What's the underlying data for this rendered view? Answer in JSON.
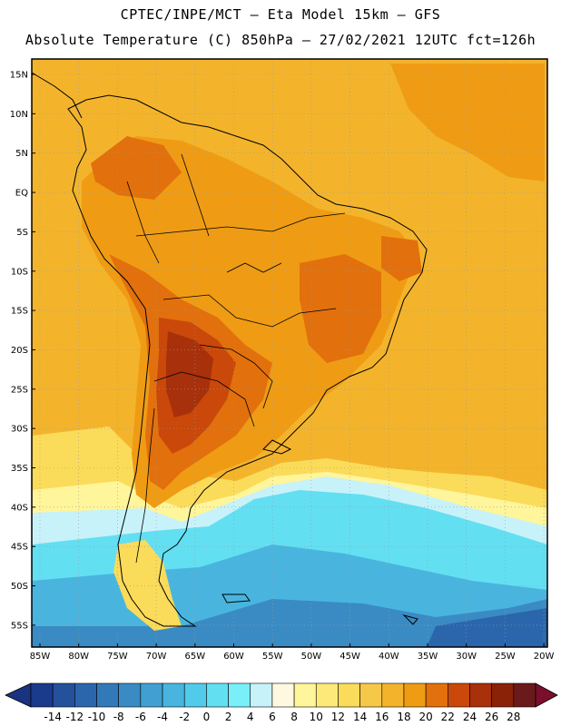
{
  "header": {
    "line1": "CPTEC/INPE/MCT –  Eta Model 15km – GFS",
    "line2": "Absolute Temperature (C) 850hPa – 27/02/2021 12UTC fct=126h"
  },
  "map": {
    "lat_labels": [
      "15N",
      "10N",
      "5N",
      "EQ",
      "5S",
      "10S",
      "15S",
      "20S",
      "25S",
      "30S",
      "35S",
      "40S",
      "45S",
      "50S",
      "55S"
    ],
    "lon_labels": [
      "85W",
      "80W",
      "75W",
      "70W",
      "65W",
      "60W",
      "55W",
      "50W",
      "45W",
      "40W",
      "35W",
      "30W",
      "25W",
      "20W"
    ]
  },
  "colorbar": {
    "labels": [
      "-14",
      "-12",
      "-10",
      "-8",
      "-6",
      "-4",
      "-2",
      "0",
      "2",
      "4",
      "6",
      "8",
      "10",
      "12",
      "14",
      "16",
      "18",
      "20",
      "22",
      "24",
      "26",
      "28"
    ],
    "colors": [
      "#1a3a8a",
      "#24509c",
      "#2b66ad",
      "#3279b8",
      "#3a8bc4",
      "#41a0d1",
      "#49b5df",
      "#52cbea",
      "#63dff2",
      "#79f0f9",
      "#c8f2fa",
      "#fff8e0",
      "#fff59a",
      "#fde97a",
      "#fbdb5a",
      "#f6c84a",
      "#f3b42c",
      "#ef9c14",
      "#e2700c",
      "#c9480a",
      "#a8300a",
      "#8a2208",
      "#6a1a1a"
    ],
    "left_arrow_color": "#1a3380",
    "right_arrow_color": "#7a0f2c"
  }
}
